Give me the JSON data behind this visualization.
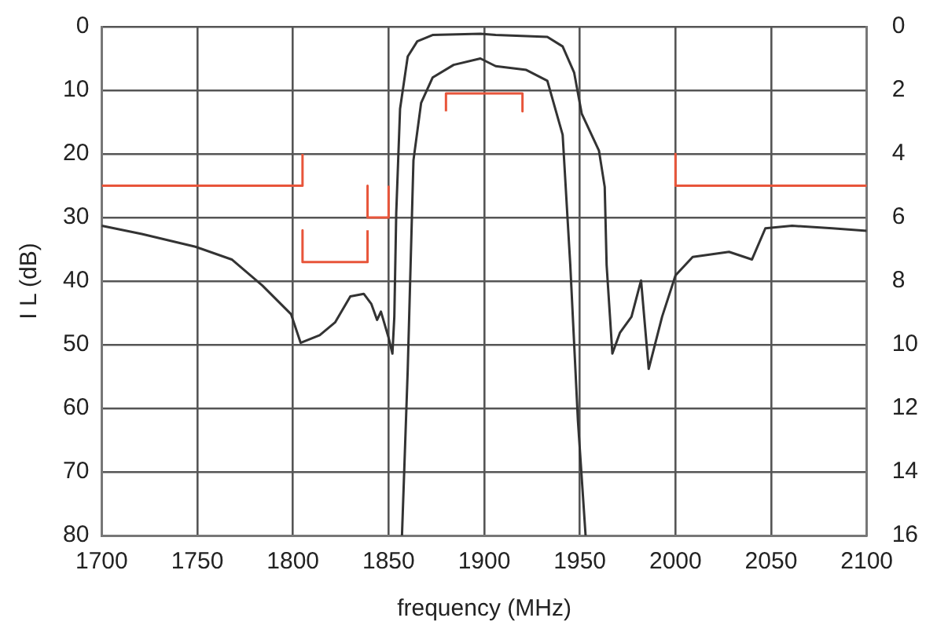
{
  "chart_data": {
    "type": "line",
    "xlabel": "frequency (MHz)",
    "ylabel": "I L (dB)",
    "xlim": [
      1700,
      2100
    ],
    "xticks": [
      1700,
      1750,
      1800,
      1850,
      1900,
      1950,
      2000,
      2050,
      2100
    ],
    "ylim": [
      80,
      0
    ],
    "yticks": [
      0,
      10,
      20,
      30,
      40,
      50,
      60,
      70,
      80
    ],
    "y2lim": [
      16,
      0
    ],
    "y2ticks": [
      0,
      2,
      4,
      6,
      8,
      10,
      12,
      14,
      16
    ],
    "grid": true,
    "legend": false,
    "series": [
      {
        "color": "#333333",
        "x": [
          1700,
          1721,
          1749,
          1768,
          1784,
          1799,
          1804,
          1814,
          1822,
          1830,
          1837,
          1841,
          1844,
          1846,
          1850,
          1852,
          1853,
          1854,
          1856,
          1860,
          1865,
          1873,
          1898,
          1906,
          1933,
          1941,
          1947,
          1951,
          1960,
          1963,
          1964,
          1967,
          1971,
          1977,
          1982,
          1986,
          1993,
          2000,
          2009,
          2028,
          2040,
          2047,
          2061,
          2082,
          2100
        ],
        "values": [
          31.3,
          32.6,
          34.6,
          36.6,
          40.7,
          45.2,
          49.7,
          48.5,
          46.5,
          42.4,
          42.0,
          43.6,
          46.1,
          44.8,
          48.9,
          51.4,
          45.6,
          29.3,
          12.9,
          4.7,
          2.3,
          1.3,
          1.1,
          1.3,
          1.6,
          3.1,
          7.2,
          13.7,
          19.5,
          25.2,
          37.5,
          51.4,
          48.1,
          45.6,
          39.9,
          53.8,
          45.6,
          39.1,
          36.2,
          35.4,
          36.6,
          31.7,
          31.3,
          31.7,
          32.1
        ]
      },
      {
        "color": "#333333",
        "axis": "y2",
        "x": [
          1857,
          1860,
          1863,
          1867,
          1873,
          1884,
          1898,
          1906,
          1922,
          1933,
          1941,
          1945,
          1949,
          1953
        ],
        "values": [
          16.0,
          10.8,
          4.2,
          2.4,
          1.6,
          1.2,
          1.0,
          1.24,
          1.36,
          1.7,
          3.4,
          7.5,
          12.4,
          16.0
        ]
      },
      {
        "color": "#e8553a",
        "x": [
          1700,
          1805,
          1805
        ],
        "values": [
          25,
          25,
          20
        ]
      },
      {
        "color": "#e8553a",
        "x": [
          1805,
          1805,
          1839,
          1839
        ],
        "values": [
          32,
          37,
          37,
          32
        ]
      },
      {
        "color": "#e8553a",
        "x": [
          1839,
          1839,
          1850,
          1850
        ],
        "values": [
          25,
          30,
          30,
          25
        ]
      },
      {
        "color": "#e8553a",
        "x": [
          1880,
          1880,
          1920,
          1920
        ],
        "values": [
          13.3,
          10.5,
          10.5,
          13.3
        ]
      },
      {
        "color": "#e8553a",
        "x": [
          2000,
          2000,
          2100
        ],
        "values": [
          20,
          25,
          25
        ]
      }
    ]
  }
}
